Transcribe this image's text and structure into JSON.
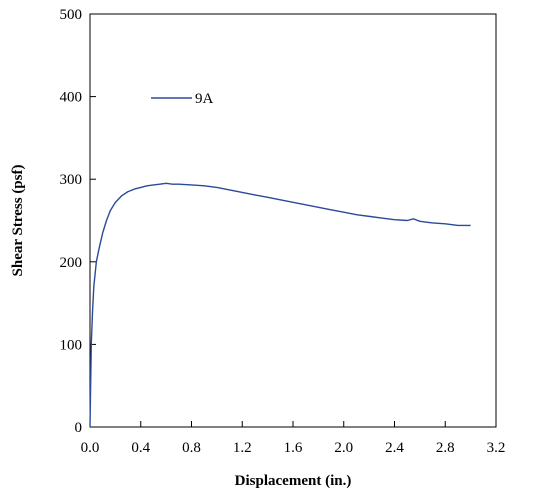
{
  "chart_data": {
    "type": "line",
    "title": "",
    "xlabel": "Displacement (in.)",
    "ylabel": "Shear Stress (psf)",
    "xlim": [
      0.0,
      3.2
    ],
    "ylim": [
      0,
      500
    ],
    "x_ticks": [
      "0.0",
      "0.4",
      "0.8",
      "1.2",
      "1.6",
      "2.0",
      "2.4",
      "2.8",
      "3.2"
    ],
    "y_ticks": [
      "0",
      "100",
      "200",
      "300",
      "400",
      "500"
    ],
    "x_tick_values": [
      0.0,
      0.4,
      0.8,
      1.2,
      1.6,
      2.0,
      2.4,
      2.8,
      3.2
    ],
    "y_tick_values": [
      0,
      100,
      200,
      300,
      400,
      500
    ],
    "grid": false,
    "legend_position": "upper-left",
    "series": [
      {
        "name": "9A",
        "color": "#2b4a9a",
        "x": [
          0.0,
          0.01,
          0.02,
          0.03,
          0.05,
          0.07,
          0.1,
          0.13,
          0.16,
          0.2,
          0.25,
          0.3,
          0.35,
          0.4,
          0.45,
          0.5,
          0.55,
          0.6,
          0.65,
          0.7,
          0.8,
          0.9,
          1.0,
          1.1,
          1.2,
          1.3,
          1.4,
          1.5,
          1.6,
          1.7,
          1.8,
          1.9,
          2.0,
          2.1,
          2.2,
          2.3,
          2.4,
          2.5,
          2.55,
          2.6,
          2.7,
          2.8,
          2.9,
          3.0
        ],
        "y": [
          0,
          100,
          140,
          170,
          200,
          215,
          235,
          250,
          262,
          272,
          280,
          285,
          288,
          290,
          292,
          293,
          294,
          295,
          294,
          294,
          293,
          292,
          290,
          287,
          284,
          281,
          278,
          275,
          272,
          269,
          266,
          263,
          260,
          257,
          255,
          253,
          251,
          250,
          252,
          249,
          247,
          246,
          244,
          244
        ]
      }
    ]
  }
}
